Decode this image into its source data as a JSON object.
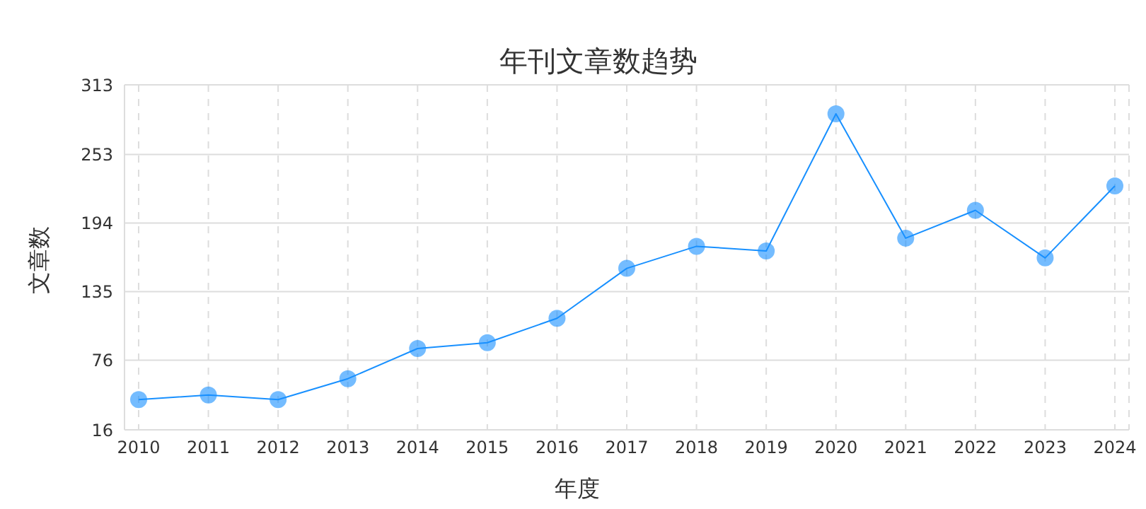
{
  "chart_data": {
    "type": "line",
    "title": "年刊文章数趋势",
    "xlabel": "年度",
    "ylabel": "文章数",
    "categories": [
      "2010",
      "2011",
      "2012",
      "2013",
      "2014",
      "2015",
      "2016",
      "2017",
      "2018",
      "2019",
      "2020",
      "2021",
      "2022",
      "2023",
      "2024"
    ],
    "series": [
      {
        "color": "#1890ff",
        "values": [
          42,
          46,
          42,
          60,
          86,
          91,
          112,
          155,
          174,
          170,
          288,
          181,
          205,
          164,
          226
        ]
      }
    ],
    "ylim": [
      16,
      313
    ],
    "yticks": [
      16,
      76,
      135,
      194,
      253,
      313
    ],
    "grid": true,
    "marker": "circle",
    "line_style": "solid"
  }
}
